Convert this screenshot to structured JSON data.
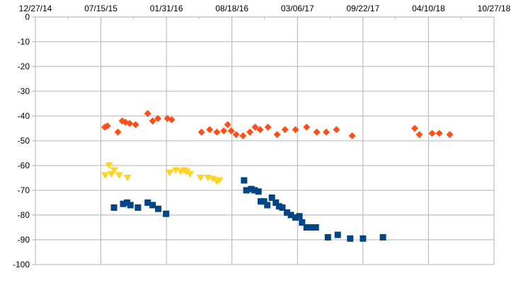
{
  "chart_data": {
    "type": "scatter",
    "title": "",
    "xlabel": "",
    "ylabel": "",
    "grid": true,
    "legend": "none",
    "x_axis": {
      "type": "date",
      "range": [
        "2014-12-27",
        "2018-10-27"
      ],
      "tick_labels": [
        "12/27/14",
        "07/15/15",
        "01/31/16",
        "08/18/16",
        "03/06/17",
        "09/22/17",
        "04/10/18",
        "10/27/18"
      ],
      "tick_values": [
        "2014-12-27",
        "2015-07-15",
        "2016-01-31",
        "2016-08-18",
        "2017-03-06",
        "2017-09-22",
        "2018-04-10",
        "2018-10-27"
      ],
      "minor_tick_values": [
        "2015-04-05",
        "2015-10-22",
        "2016-05-09",
        "2016-11-25",
        "2017-06-13",
        "2017-12-30",
        "2018-07-18"
      ],
      "position": "top"
    },
    "y_axis": {
      "range": [
        -100,
        0
      ],
      "ticks": [
        0,
        -10,
        -20,
        -30,
        -40,
        -50,
        -60,
        -70,
        -80,
        -90,
        -100
      ],
      "tick_labels": [
        "0",
        "-10",
        "-20",
        "-30",
        "-40",
        "-50",
        "-60",
        "-70",
        "-80",
        "-90",
        "-100"
      ]
    },
    "series": [
      {
        "marker": "diamond",
        "color": "#ff4f19",
        "points": [
          {
            "x": "2015-07-27",
            "y": -44.5
          },
          {
            "x": "2015-08-04",
            "y": -44
          },
          {
            "x": "2015-09-05",
            "y": -46.5
          },
          {
            "x": "2015-09-18",
            "y": -42
          },
          {
            "x": "2015-09-28",
            "y": -42.5
          },
          {
            "x": "2015-10-11",
            "y": -43
          },
          {
            "x": "2015-10-29",
            "y": -43.5
          },
          {
            "x": "2015-12-05",
            "y": -39
          },
          {
            "x": "2015-12-20",
            "y": -42
          },
          {
            "x": "2016-01-05",
            "y": -41
          },
          {
            "x": "2016-02-03",
            "y": -41
          },
          {
            "x": "2016-02-16",
            "y": -41.5
          },
          {
            "x": "2016-05-17",
            "y": -46.5
          },
          {
            "x": "2016-06-11",
            "y": -45.5
          },
          {
            "x": "2016-07-03",
            "y": -46.5
          },
          {
            "x": "2016-07-24",
            "y": -46
          },
          {
            "x": "2016-08-05",
            "y": -43.5
          },
          {
            "x": "2016-08-16",
            "y": -46
          },
          {
            "x": "2016-08-31",
            "y": -47.5
          },
          {
            "x": "2016-09-21",
            "y": -48
          },
          {
            "x": "2016-10-12",
            "y": -46.5
          },
          {
            "x": "2016-10-28",
            "y": -44.5
          },
          {
            "x": "2016-11-12",
            "y": -45.5
          },
          {
            "x": "2016-12-06",
            "y": -44.5
          },
          {
            "x": "2017-01-03",
            "y": -47.5
          },
          {
            "x": "2017-01-27",
            "y": -45.5
          },
          {
            "x": "2017-02-28",
            "y": -45.5
          },
          {
            "x": "2017-04-03",
            "y": -44.5
          },
          {
            "x": "2017-05-04",
            "y": -46.5
          },
          {
            "x": "2017-06-02",
            "y": -46.5
          },
          {
            "x": "2017-07-03",
            "y": -45.5
          },
          {
            "x": "2017-08-20",
            "y": -48
          },
          {
            "x": "2018-02-27",
            "y": -45
          },
          {
            "x": "2018-03-13",
            "y": -47.5
          },
          {
            "x": "2018-04-21",
            "y": -47
          },
          {
            "x": "2018-05-13",
            "y": -47
          },
          {
            "x": "2018-06-14",
            "y": -47.5
          }
        ]
      },
      {
        "marker": "triangle-down",
        "color": "#ffd320",
        "points": [
          {
            "x": "2015-07-28",
            "y": -64
          },
          {
            "x": "2015-08-09",
            "y": -60
          },
          {
            "x": "2015-08-16",
            "y": -63.5
          },
          {
            "x": "2015-08-25",
            "y": -62
          },
          {
            "x": "2015-09-09",
            "y": -64
          },
          {
            "x": "2015-10-04",
            "y": -65
          },
          {
            "x": "2016-02-10",
            "y": -63
          },
          {
            "x": "2016-02-28",
            "y": -62
          },
          {
            "x": "2016-03-15",
            "y": -62.5
          },
          {
            "x": "2016-03-25",
            "y": -62
          },
          {
            "x": "2016-04-02",
            "y": -62.5
          },
          {
            "x": "2016-04-12",
            "y": -63.5
          },
          {
            "x": "2016-05-14",
            "y": -65
          },
          {
            "x": "2016-06-06",
            "y": -65
          },
          {
            "x": "2016-06-21",
            "y": -65.5
          },
          {
            "x": "2016-07-03",
            "y": -66.5
          },
          {
            "x": "2016-07-11",
            "y": -66
          }
        ]
      },
      {
        "marker": "square",
        "color": "#004586",
        "points": [
          {
            "x": "2015-08-24",
            "y": -77
          },
          {
            "x": "2015-09-21",
            "y": -75.5
          },
          {
            "x": "2015-10-03",
            "y": -75
          },
          {
            "x": "2015-10-13",
            "y": -76
          },
          {
            "x": "2015-11-05",
            "y": -77
          },
          {
            "x": "2015-12-05",
            "y": -75
          },
          {
            "x": "2015-12-20",
            "y": -76
          },
          {
            "x": "2016-01-06",
            "y": -77.5
          },
          {
            "x": "2016-01-30",
            "y": -79.5
          },
          {
            "x": "2016-09-24",
            "y": -66
          },
          {
            "x": "2016-10-01",
            "y": -70
          },
          {
            "x": "2016-10-16",
            "y": -69.5
          },
          {
            "x": "2016-10-26",
            "y": -70
          },
          {
            "x": "2016-11-07",
            "y": -70.5
          },
          {
            "x": "2016-11-14",
            "y": -74.5
          },
          {
            "x": "2016-11-24",
            "y": -74.5
          },
          {
            "x": "2016-12-04",
            "y": -76
          },
          {
            "x": "2016-12-18",
            "y": -73
          },
          {
            "x": "2016-12-30",
            "y": -75
          },
          {
            "x": "2017-01-09",
            "y": -76.5
          },
          {
            "x": "2017-01-19",
            "y": -77
          },
          {
            "x": "2017-02-02",
            "y": -79
          },
          {
            "x": "2017-02-14",
            "y": -80
          },
          {
            "x": "2017-02-28",
            "y": -81
          },
          {
            "x": "2017-03-12",
            "y": -80.5
          },
          {
            "x": "2017-03-20",
            "y": -83
          },
          {
            "x": "2017-04-03",
            "y": -85
          },
          {
            "x": "2017-04-15",
            "y": -85
          },
          {
            "x": "2017-05-01",
            "y": -85
          },
          {
            "x": "2017-06-07",
            "y": -89
          },
          {
            "x": "2017-07-07",
            "y": -88
          },
          {
            "x": "2017-08-14",
            "y": -89.5
          },
          {
            "x": "2017-09-22",
            "y": -89.5
          },
          {
            "x": "2017-11-22",
            "y": -89
          }
        ]
      }
    ]
  }
}
